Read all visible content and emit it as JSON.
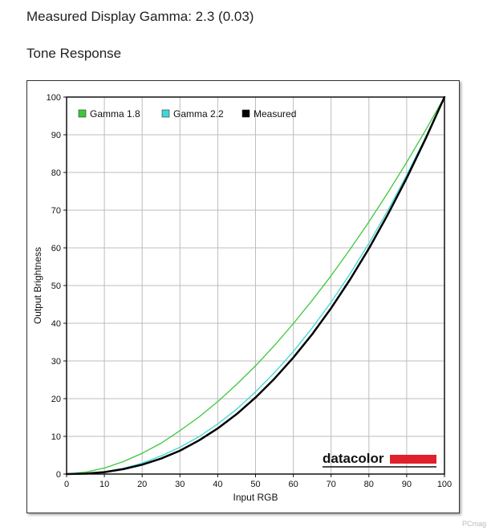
{
  "page": {
    "title": "Measured Display Gamma: 2.3 (0.03)",
    "subtitle": "Tone Response",
    "watermark": "PCmag"
  },
  "brand": {
    "name": "datacolor",
    "accent_color": "#e0202a"
  },
  "chart_data": {
    "type": "line",
    "xlabel": "Input RGB",
    "ylabel": "Output Brightness",
    "xlim": [
      0,
      100
    ],
    "ylim": [
      0,
      100
    ],
    "x_ticks": [
      0,
      10,
      20,
      30,
      40,
      50,
      60,
      70,
      80,
      90,
      100
    ],
    "y_ticks": [
      0,
      10,
      20,
      30,
      40,
      50,
      60,
      70,
      80,
      90,
      100
    ],
    "grid": true,
    "legend_position": "top-left",
    "series": [
      {
        "name": "Gamma 1.8",
        "color": "#3cc83c",
        "x": [
          0,
          5,
          10,
          15,
          20,
          25,
          30,
          35,
          40,
          45,
          50,
          55,
          60,
          65,
          70,
          75,
          80,
          85,
          90,
          95,
          100
        ],
        "y": [
          0,
          0.5,
          1.6,
          3.3,
          5.5,
          8.2,
          11.5,
          15.1,
          19.2,
          23.8,
          28.7,
          34.1,
          39.9,
          46.1,
          52.6,
          59.6,
          66.9,
          74.6,
          82.7,
          91.2,
          100
        ]
      },
      {
        "name": "Gamma 2.2",
        "color": "#3fd6d6",
        "x": [
          0,
          5,
          10,
          15,
          20,
          25,
          30,
          35,
          40,
          45,
          50,
          55,
          60,
          65,
          70,
          75,
          80,
          85,
          90,
          95,
          100
        ],
        "y": [
          0,
          0.1,
          0.6,
          1.5,
          2.9,
          4.8,
          7.1,
          9.9,
          13.3,
          17.2,
          21.8,
          26.9,
          32.5,
          38.8,
          45.6,
          53.1,
          61.2,
          69.9,
          79.3,
          89.3,
          100
        ]
      },
      {
        "name": "Measured",
        "color": "#000000",
        "x": [
          0,
          5,
          10,
          15,
          20,
          25,
          30,
          35,
          40,
          45,
          50,
          55,
          60,
          65,
          70,
          75,
          80,
          85,
          90,
          95,
          100
        ],
        "y": [
          0,
          0.1,
          0.5,
          1.3,
          2.5,
          4.1,
          6.2,
          8.9,
          12.1,
          15.9,
          20.3,
          25.3,
          30.9,
          37.1,
          44.0,
          51.6,
          59.8,
          68.8,
          78.5,
          88.9,
          100
        ]
      }
    ]
  }
}
